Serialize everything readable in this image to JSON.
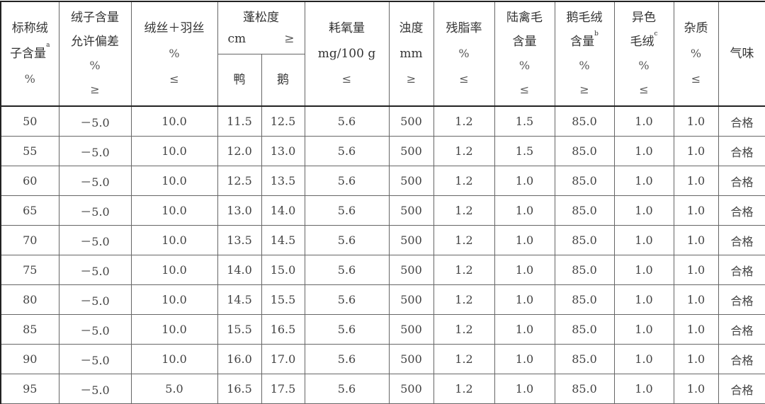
{
  "table": {
    "headers": [
      {
        "lines": [
          "标称绒",
          "子含量",
          "%"
        ],
        "sup_line": 1,
        "sup": "a"
      },
      {
        "lines": [
          "绒子含量",
          "允许偏差",
          "%",
          "≥"
        ]
      },
      {
        "lines": [
          "绒丝＋羽丝",
          "%",
          "≤"
        ]
      },
      {
        "group": true,
        "lines": [
          "蓬松度"
        ],
        "unit": "cm",
        "unit_sym": "≥",
        "sub": [
          "鸭",
          "鹅"
        ]
      },
      {
        "lines": [
          "耗氧量",
          "mg/100 g",
          "≤"
        ]
      },
      {
        "lines": [
          "浊度",
          "mm",
          "≥"
        ]
      },
      {
        "lines": [
          "残脂率",
          "%",
          "≤"
        ]
      },
      {
        "lines": [
          "陆禽毛",
          "含量",
          "%",
          "≤"
        ]
      },
      {
        "lines": [
          "鹅毛绒",
          "含量",
          "%",
          "≥"
        ],
        "sup_line": 1,
        "sup": "b"
      },
      {
        "lines": [
          "异色",
          "毛绒",
          "%",
          "≤"
        ],
        "sup_line": 1,
        "sup": "c"
      },
      {
        "lines": [
          "杂质",
          "%",
          "≤"
        ]
      },
      {
        "lines": [
          "气味"
        ]
      }
    ],
    "rows": [
      [
        "50",
        "－5.0",
        "10.0",
        "11.5",
        "12.5",
        "5.6",
        "500",
        "1.2",
        "1.5",
        "85.0",
        "1.0",
        "1.0",
        "合格"
      ],
      [
        "55",
        "－5.0",
        "10.0",
        "12.0",
        "13.0",
        "5.6",
        "500",
        "1.2",
        "1.5",
        "85.0",
        "1.0",
        "1.0",
        "合格"
      ],
      [
        "60",
        "－5.0",
        "10.0",
        "12.5",
        "13.5",
        "5.6",
        "500",
        "1.2",
        "1.0",
        "85.0",
        "1.0",
        "1.0",
        "合格"
      ],
      [
        "65",
        "－5.0",
        "10.0",
        "13.0",
        "14.0",
        "5.6",
        "500",
        "1.2",
        "1.0",
        "85.0",
        "1.0",
        "1.0",
        "合格"
      ],
      [
        "70",
        "－5.0",
        "10.0",
        "13.5",
        "14.5",
        "5.6",
        "500",
        "1.2",
        "1.0",
        "85.0",
        "1.0",
        "1.0",
        "合格"
      ],
      [
        "75",
        "－5.0",
        "10.0",
        "14.0",
        "15.0",
        "5.6",
        "500",
        "1.2",
        "1.0",
        "85.0",
        "1.0",
        "1.0",
        "合格"
      ],
      [
        "80",
        "－5.0",
        "10.0",
        "14.5",
        "15.5",
        "5.6",
        "500",
        "1.2",
        "1.0",
        "85.0",
        "1.0",
        "1.0",
        "合格"
      ],
      [
        "85",
        "－5.0",
        "10.0",
        "15.5",
        "16.5",
        "5.6",
        "500",
        "1.2",
        "1.0",
        "85.0",
        "1.0",
        "1.0",
        "合格"
      ],
      [
        "90",
        "－5.0",
        "10.0",
        "16.0",
        "17.0",
        "5.6",
        "500",
        "1.2",
        "1.0",
        "85.0",
        "1.0",
        "1.0",
        "合格"
      ],
      [
        "95",
        "－5.0",
        "5.0",
        "16.5",
        "17.5",
        "5.6",
        "500",
        "1.2",
        "1.0",
        "85.0",
        "1.0",
        "1.0",
        "合格"
      ]
    ]
  }
}
